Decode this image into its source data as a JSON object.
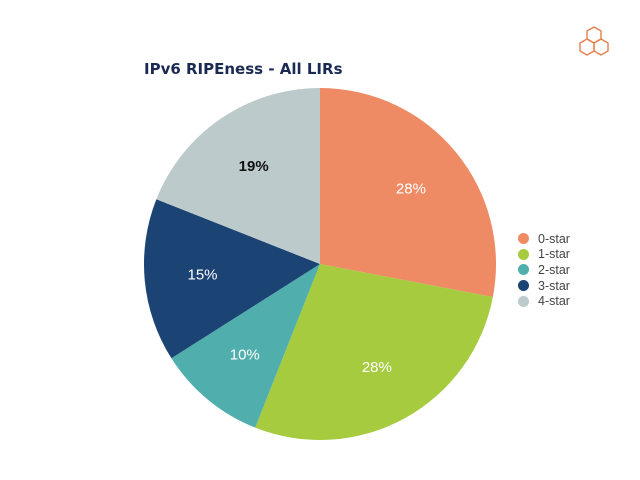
{
  "colors": {
    "title": "#1b2a52",
    "logo_accent": "#e5804f",
    "slice_label_light": "#ffffff",
    "slice_label_dark": "#111111"
  },
  "logo": {
    "icon": "ripe-ncc-hexagon-logo-icon"
  },
  "chart_data": {
    "type": "pie",
    "title": "IPv6 RIPEness - All LIRs",
    "legend_position": "right",
    "start_angle_deg": 0,
    "direction": "clockwise",
    "slices": [
      {
        "label": "0-star",
        "value": 28,
        "display": "28%",
        "color": "#ee8a64",
        "label_color": "light"
      },
      {
        "label": "1-star",
        "value": 28,
        "display": "28%",
        "color": "#a6cb3f",
        "label_color": "light"
      },
      {
        "label": "2-star",
        "value": 10,
        "display": "10%",
        "color": "#50afac",
        "label_color": "light"
      },
      {
        "label": "3-star",
        "value": 15,
        "display": "15%",
        "color": "#1b4374",
        "label_color": "light"
      },
      {
        "label": "4-star",
        "value": 19,
        "display": "19%",
        "color": "#bccacc",
        "label_color": "dark"
      }
    ]
  }
}
